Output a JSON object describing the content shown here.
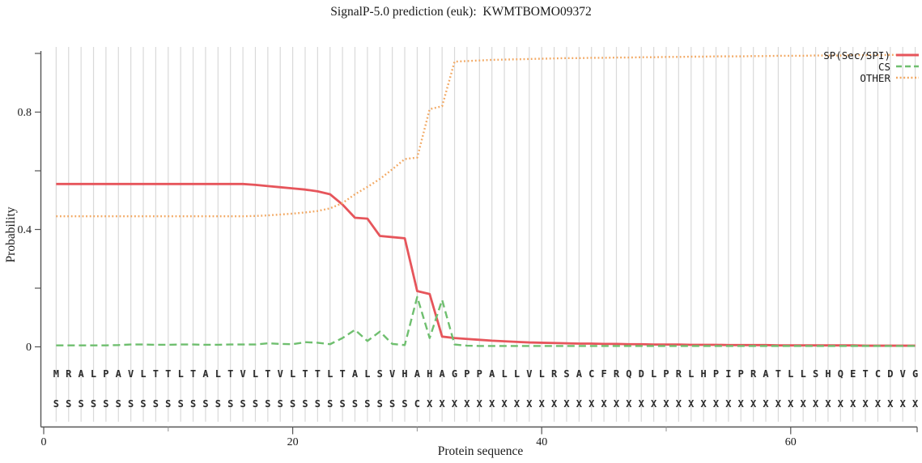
{
  "chart_data": {
    "type": "line",
    "title": "SignalP-5.0 prediction (euk):  KWMTBOMO09372",
    "xlabel": "Protein sequence",
    "ylabel": "Probability",
    "xlim": [
      0,
      70
    ],
    "ylim": [
      0,
      1
    ],
    "grid": "vertical line at every residue position",
    "legend_position": "top-right",
    "x_axis": {
      "major_ticks": [
        {
          "value": 0,
          "text": "0"
        },
        {
          "value": 20,
          "text": "20"
        },
        {
          "value": 40,
          "text": "40"
        },
        {
          "value": 60,
          "text": "60"
        }
      ],
      "minor_ticks": [
        10,
        30,
        50
      ]
    },
    "y_axis": {
      "ticks": [
        0,
        0.2,
        0.4,
        0.6,
        0.8,
        1.0
      ],
      "labeled_ticks": [
        {
          "value": 0,
          "text": "0"
        },
        {
          "value": 0.4,
          "text": "0.4"
        },
        {
          "value": 0.8,
          "text": "0.8"
        }
      ]
    },
    "sequence": "MRALPAVLTTLTALTVLTVLTTLTALSVHAHAGPPALLVLRSACFRQDLPRLHPIPRATLLSHQETCDVG",
    "marker_row": "SSSSSSSSSSSSSSSSSSSSSSSSSSSSSCXXXXXXXXXXXXXXXXXXXXXXXXXXXXXXXXXXXXXXXX",
    "x_start": 1,
    "series": [
      {
        "name": "SP(Sec/SPI)",
        "style": "solid",
        "color": "#e6555b",
        "values": [
          0.555,
          0.555,
          0.555,
          0.555,
          0.555,
          0.555,
          0.555,
          0.555,
          0.555,
          0.555,
          0.555,
          0.555,
          0.555,
          0.555,
          0.555,
          0.555,
          0.552,
          0.548,
          0.544,
          0.54,
          0.536,
          0.53,
          0.52,
          0.485,
          0.44,
          0.437,
          0.378,
          0.374,
          0.37,
          0.19,
          0.18,
          0.035,
          0.03,
          0.027,
          0.024,
          0.021,
          0.019,
          0.017,
          0.015,
          0.014,
          0.013,
          0.012,
          0.011,
          0.011,
          0.01,
          0.01,
          0.009,
          0.009,
          0.008,
          0.008,
          0.008,
          0.007,
          0.007,
          0.007,
          0.006,
          0.006,
          0.006,
          0.006,
          0.005,
          0.005,
          0.005,
          0.005,
          0.005,
          0.005,
          0.005,
          0.004,
          0.004,
          0.004,
          0.004,
          0.004
        ]
      },
      {
        "name": "CS",
        "style": "dashed",
        "color": "#6fbf6f",
        "values": [
          0.005,
          0.005,
          0.005,
          0.005,
          0.005,
          0.006,
          0.008,
          0.008,
          0.007,
          0.007,
          0.008,
          0.008,
          0.007,
          0.007,
          0.008,
          0.008,
          0.008,
          0.012,
          0.01,
          0.009,
          0.016,
          0.014,
          0.009,
          0.03,
          0.058,
          0.02,
          0.052,
          0.01,
          0.006,
          0.17,
          0.03,
          0.16,
          0.008,
          0.004,
          0.003,
          0.003,
          0.003,
          0.003,
          0.003,
          0.003,
          0.003,
          0.003,
          0.003,
          0.003,
          0.003,
          0.003,
          0.003,
          0.003,
          0.003,
          0.003,
          0.003,
          0.003,
          0.003,
          0.003,
          0.003,
          0.003,
          0.003,
          0.003,
          0.003,
          0.003,
          0.003,
          0.003,
          0.003,
          0.003,
          0.003,
          0.003,
          0.003,
          0.003,
          0.003,
          0.003
        ]
      },
      {
        "name": "OTHER",
        "style": "dotted",
        "color": "#f2a862",
        "values": [
          0.445,
          0.445,
          0.445,
          0.445,
          0.445,
          0.445,
          0.445,
          0.445,
          0.445,
          0.445,
          0.445,
          0.445,
          0.445,
          0.445,
          0.445,
          0.445,
          0.446,
          0.448,
          0.451,
          0.454,
          0.458,
          0.463,
          0.472,
          0.49,
          0.52,
          0.545,
          0.572,
          0.605,
          0.64,
          0.645,
          0.81,
          0.82,
          0.972,
          0.974,
          0.976,
          0.978,
          0.979,
          0.98,
          0.981,
          0.982,
          0.983,
          0.984,
          0.984,
          0.985,
          0.985,
          0.986,
          0.986,
          0.987,
          0.987,
          0.988,
          0.988,
          0.989,
          0.989,
          0.99,
          0.99,
          0.99,
          0.991,
          0.991,
          0.992,
          0.992,
          0.992,
          0.993,
          0.993,
          0.993,
          0.994,
          0.994,
          0.994,
          0.995,
          0.995,
          0.995
        ]
      }
    ]
  }
}
